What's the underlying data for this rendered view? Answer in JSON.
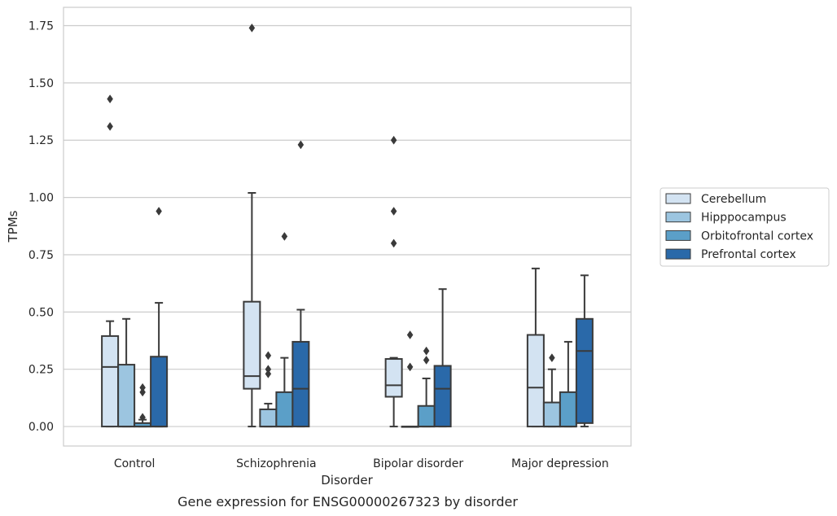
{
  "chart_data": {
    "type": "boxplot",
    "caption": "Gene expression for ENSG00000267323 by disorder",
    "xlabel": "Disorder",
    "ylabel": "TPMs",
    "ylim": [
      -0.085,
      1.83
    ],
    "yticks": [
      0.0,
      0.25,
      0.5,
      0.75,
      1.0,
      1.25,
      1.5,
      1.75
    ],
    "ytick_labels": [
      "0.00",
      "0.25",
      "0.50",
      "0.75",
      "1.00",
      "1.25",
      "1.50",
      "1.75"
    ],
    "grid": "horizontal",
    "legend_position": "right",
    "categories": [
      "Control",
      "Schizophrenia",
      "Bipolar disorder",
      "Major depression"
    ],
    "series": [
      {
        "name": "Cerebellum",
        "color": "#d3e3f2",
        "boxes": [
          {
            "whislo": 0.0,
            "q1": 0.0,
            "med": 0.26,
            "q3": 0.395,
            "whishi": 0.46,
            "fliers": [
              1.31,
              1.43
            ]
          },
          {
            "whislo": 0.0,
            "q1": 0.165,
            "med": 0.22,
            "q3": 0.545,
            "whishi": 1.02,
            "fliers": [
              1.74
            ]
          },
          {
            "whislo": 0.0,
            "q1": 0.13,
            "med": 0.18,
            "q3": 0.295,
            "whishi": 0.3,
            "fliers": [
              0.8,
              0.94,
              1.25
            ]
          },
          {
            "whislo": 0.0,
            "q1": 0.0,
            "med": 0.17,
            "q3": 0.4,
            "whishi": 0.69,
            "fliers": []
          }
        ]
      },
      {
        "name": "Hipppocampus",
        "color": "#9cc5e0",
        "boxes": [
          {
            "whislo": 0.0,
            "q1": 0.0,
            "med": 0.0,
            "q3": 0.27,
            "whishi": 0.47,
            "fliers": []
          },
          {
            "whislo": 0.0,
            "q1": 0.0,
            "med": 0.0,
            "q3": 0.075,
            "whishi": 0.1,
            "fliers": [
              0.23,
              0.25,
              0.31
            ]
          },
          {
            "whislo": 0.0,
            "q1": 0.0,
            "med": 0.0,
            "q3": 0.0,
            "whishi": 0.0,
            "fliers": [
              0.26,
              0.4
            ]
          },
          {
            "whislo": 0.0,
            "q1": 0.0,
            "med": 0.0,
            "q3": 0.105,
            "whishi": 0.25,
            "fliers": [
              0.3
            ]
          }
        ]
      },
      {
        "name": "Orbitofrontal cortex",
        "color": "#5b9fc8",
        "boxes": [
          {
            "whislo": 0.0,
            "q1": 0.0,
            "med": 0.0,
            "q3": 0.015,
            "whishi": 0.03,
            "fliers": [
              0.04,
              0.15,
              0.17
            ]
          },
          {
            "whislo": 0.0,
            "q1": 0.0,
            "med": 0.0,
            "q3": 0.15,
            "whishi": 0.3,
            "fliers": [
              0.83
            ]
          },
          {
            "whislo": 0.0,
            "q1": 0.0,
            "med": 0.0,
            "q3": 0.09,
            "whishi": 0.21,
            "fliers": [
              0.29,
              0.33
            ]
          },
          {
            "whislo": 0.0,
            "q1": 0.0,
            "med": 0.0,
            "q3": 0.15,
            "whishi": 0.37,
            "fliers": []
          }
        ]
      },
      {
        "name": "Prefrontal cortex",
        "color": "#2a69a9",
        "boxes": [
          {
            "whislo": 0.0,
            "q1": 0.0,
            "med": 0.0,
            "q3": 0.305,
            "whishi": 0.54,
            "fliers": [
              0.94
            ]
          },
          {
            "whislo": 0.0,
            "q1": 0.0,
            "med": 0.165,
            "q3": 0.37,
            "whishi": 0.51,
            "fliers": [
              1.23
            ]
          },
          {
            "whislo": 0.0,
            "q1": 0.0,
            "med": 0.165,
            "q3": 0.265,
            "whishi": 0.6,
            "fliers": []
          },
          {
            "whislo": 0.0,
            "q1": 0.015,
            "med": 0.33,
            "q3": 0.47,
            "whishi": 0.66,
            "fliers": []
          }
        ]
      }
    ],
    "colors": {
      "box_edge": "#3a3a3a",
      "grid": "#cccccc",
      "frame": "#cccccc",
      "text": "#262626",
      "legend_border": "#cccccc"
    }
  }
}
